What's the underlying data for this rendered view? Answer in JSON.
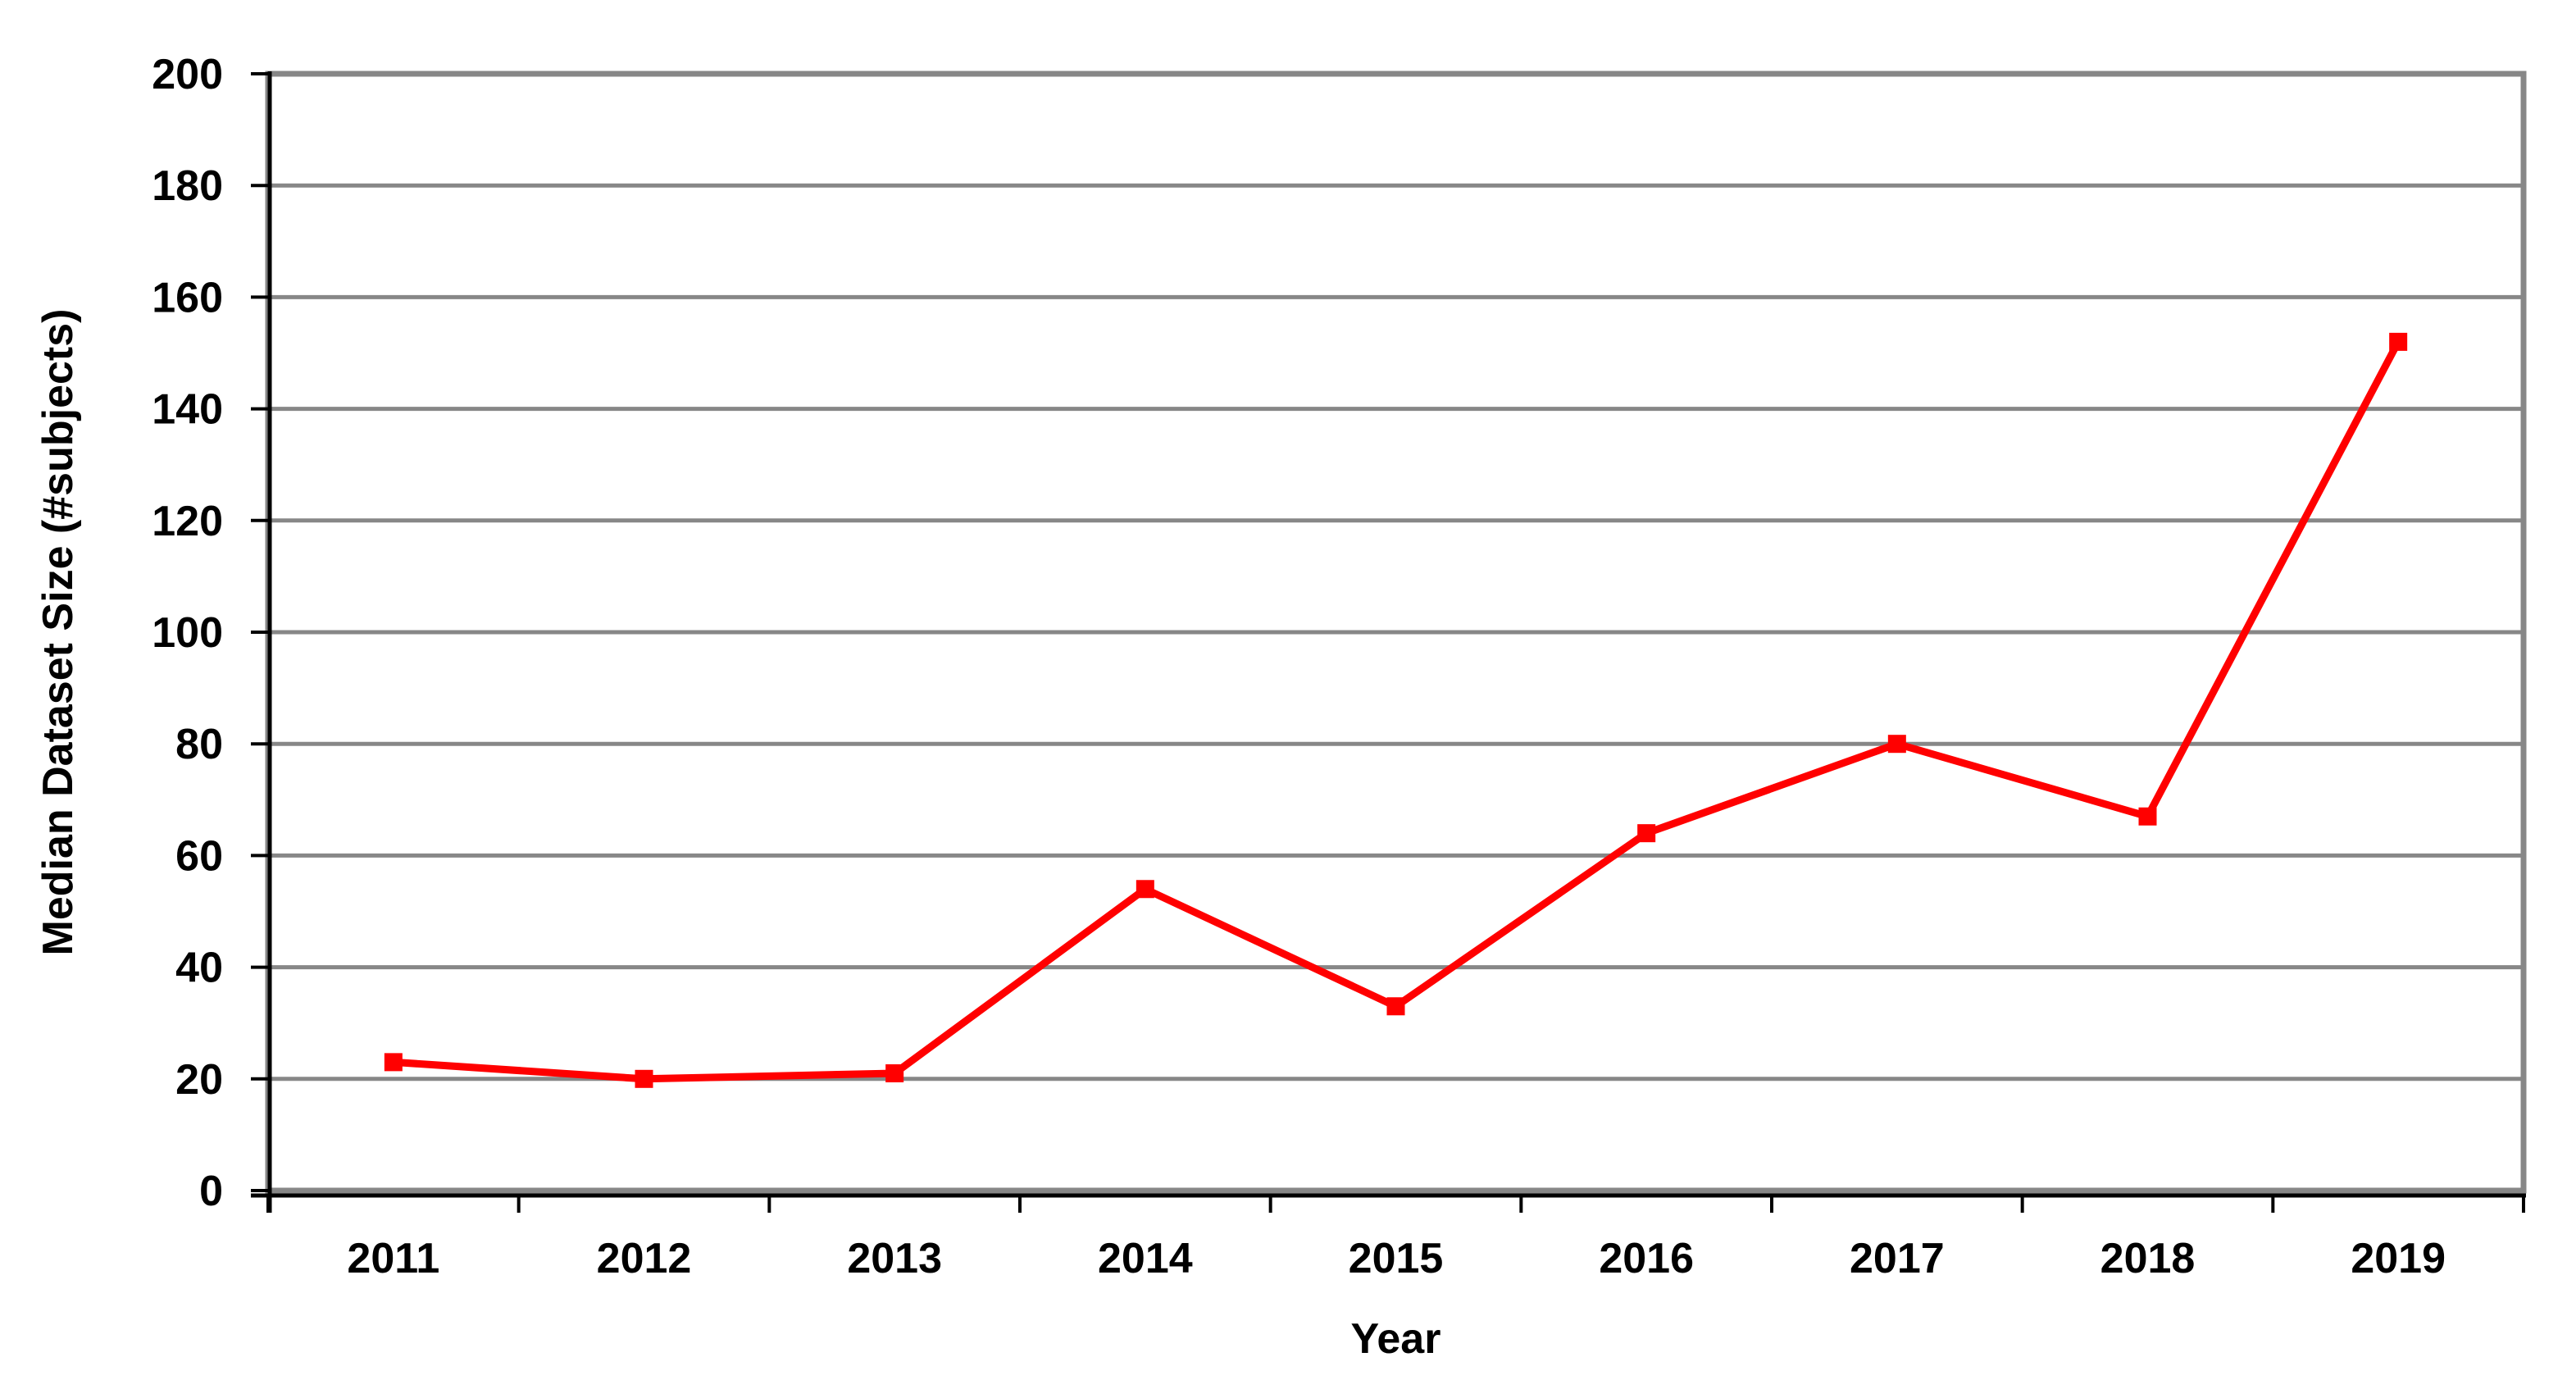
{
  "page": {
    "background_color": "#ffffff"
  },
  "chart_data": {
    "type": "line",
    "categories": [
      "2011",
      "2012",
      "2013",
      "2014",
      "2015",
      "2016",
      "2017",
      "2018",
      "2019"
    ],
    "series": [
      {
        "values": [
          23,
          20,
          21,
          54,
          33,
          64,
          80,
          67,
          152
        ],
        "color": "#ff0000",
        "marker": "square"
      }
    ],
    "xlabel": "Year",
    "ylabel": "Median Dataset Size (#subjects)",
    "ylim": [
      0,
      200
    ],
    "yticks": [
      0,
      20,
      40,
      60,
      80,
      100,
      120,
      140,
      160,
      180,
      200
    ],
    "grid": "horizontal-only",
    "legend": "none",
    "gridline_color": "#878787",
    "plot_border_color": "#878787",
    "axis_line_color": "#000000",
    "text_color": "#000000"
  }
}
